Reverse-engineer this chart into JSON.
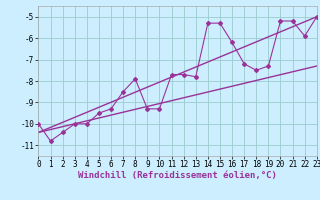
{
  "xlabel": "Windchill (Refroidissement éolien,°C)",
  "bg_color": "#cceeff",
  "line_color": "#993399",
  "grid_color": "#99cccc",
  "scatter_x": [
    0,
    1,
    2,
    3,
    4,
    5,
    6,
    7,
    8,
    9,
    10,
    11,
    12,
    13,
    14,
    15,
    16,
    17,
    18,
    19,
    20,
    21,
    22,
    23
  ],
  "scatter_y": [
    -10.0,
    -10.8,
    -10.4,
    -10.0,
    -10.0,
    -9.5,
    -9.3,
    -8.5,
    -7.9,
    -9.3,
    -9.3,
    -7.7,
    -7.7,
    -7.8,
    -5.3,
    -5.3,
    -6.2,
    -7.2,
    -7.5,
    -7.3,
    -5.2,
    -5.2,
    -5.9,
    -5.0
  ],
  "trend1_x": [
    0,
    23
  ],
  "trend1_y": [
    -10.4,
    -5.0
  ],
  "trend2_x": [
    0,
    23
  ],
  "trend2_y": [
    -10.4,
    -7.3
  ],
  "xlim": [
    0,
    23
  ],
  "ylim": [
    -11.5,
    -4.5
  ],
  "yticks": [
    -11,
    -10,
    -9,
    -8,
    -7,
    -6,
    -5
  ],
  "xticks": [
    0,
    1,
    2,
    3,
    4,
    5,
    6,
    7,
    8,
    9,
    10,
    11,
    12,
    13,
    14,
    15,
    16,
    17,
    18,
    19,
    20,
    21,
    22,
    23
  ],
  "tick_fontsize": 5.5,
  "label_fontsize": 6.5
}
